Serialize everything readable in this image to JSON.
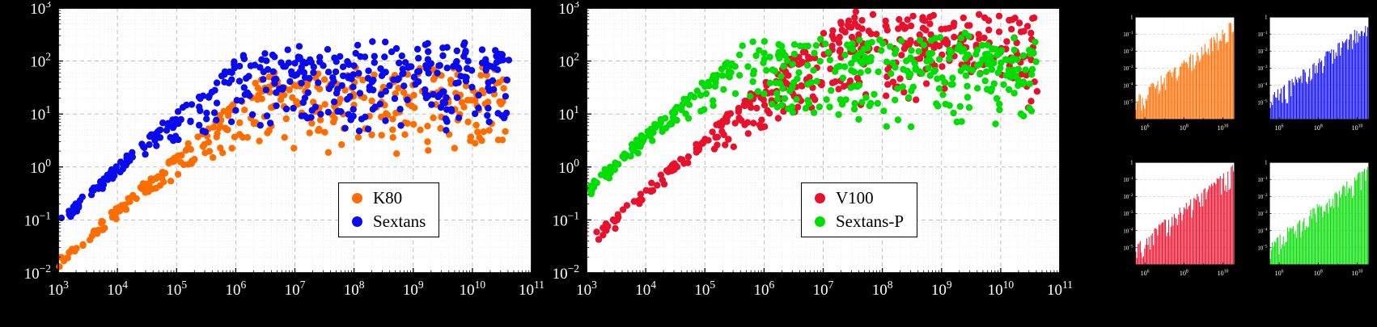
{
  "figure": {
    "bg": "#000000",
    "panel_bg": "#ffffff",
    "border_color": "#000000",
    "grid_major_color": "#b9b9b9",
    "grid_minor_color": "#dcdcdc",
    "mini_grid_minor_color": "#e6e6e6",
    "tick_label_color": "#ffffff",
    "legend_text_color": "#000000"
  },
  "chart_data": [
    {
      "id": "left-scatter-k80-vs-sextans",
      "type": "scatter",
      "xscale": "log",
      "yscale": "log",
      "x_exp_range": [
        3,
        11
      ],
      "y_exp_range": [
        -2,
        3
      ],
      "x_tick_exps": [
        3,
        4,
        5,
        6,
        7,
        8,
        9,
        10,
        11
      ],
      "y_tick_exps": [
        -2,
        -1,
        0,
        1,
        2,
        3
      ],
      "grid": true,
      "legend_position": "lower-right",
      "series": [
        {
          "name": "K80",
          "color": "#ff6d00",
          "marker": "circle",
          "trend": "rises with slope ~1 from (1e3, ~0.02), saturates around 20-80 for x >= 1e7, scattered down to ~2",
          "distribution": {
            "seed": 11,
            "n": 370,
            "xmin": 3.0,
            "xmax": 10.62,
            "x_bias": 0.85,
            "offset": 4.8,
            "sat": 1.6,
            "sat_noise": 0.3,
            "spread": 1.15,
            "tight_until": 4.4,
            "tight_ramp": 2.3
          }
        },
        {
          "name": "Sextans",
          "color": "#0a0af0",
          "marker": "circle",
          "trend": "rises with slope ~1 from (1e3, ~0.1), saturates around 60-280 for x >= 1e7, scattered down to ~5",
          "distribution": {
            "seed": 23,
            "n": 400,
            "xmin": 3.02,
            "xmax": 10.62,
            "x_bias": 0.78,
            "offset": 4.0,
            "sat": 2.05,
            "sat_noise": 0.3,
            "spread": 1.3,
            "tight_until": 4.2,
            "tight_ramp": 2.4
          }
        }
      ]
    },
    {
      "id": "middle-scatter-v100-vs-sextans-p",
      "type": "scatter",
      "xscale": "log",
      "yscale": "log",
      "x_exp_range": [
        3,
        11
      ],
      "y_exp_range": [
        -2,
        3
      ],
      "x_tick_exps": [
        3,
        4,
        5,
        6,
        7,
        8,
        9,
        10,
        11
      ],
      "y_tick_exps": [
        -2,
        -1,
        0,
        1,
        2,
        3
      ],
      "grid": true,
      "legend_position": "lower-right",
      "series": [
        {
          "name": "V100",
          "color": "#e8112d",
          "marker": "circle",
          "trend": "rises with slope ~1 from (~2e3, ~0.05), saturates around 300-900 for x >= 1e8, scattered down to ~10",
          "distribution": {
            "seed": 37,
            "n": 410,
            "xmin": 3.15,
            "xmax": 10.62,
            "x_bias": 0.8,
            "offset": 4.45,
            "sat": 2.62,
            "sat_noise": 0.28,
            "spread": 1.25,
            "tight_until": 4.5,
            "tight_ramp": 2.4
          }
        },
        {
          "name": "Sextans-P",
          "color": "#00dd00",
          "marker": "circle",
          "trend": "rises from (1e3, ~0.4), saturates around 100-300 for x >= 1e7, scattered down to ~8",
          "distribution": {
            "seed": 53,
            "n": 410,
            "xmin": 3.0,
            "xmax": 10.6,
            "x_bias": 0.8,
            "offset": 3.4,
            "sat": 2.2,
            "sat_noise": 0.28,
            "spread": 1.3,
            "tight_until": 4.1,
            "tight_ramp": 2.5
          }
        }
      ]
    },
    {
      "id": "mini-bars-k80",
      "type": "bar",
      "series_name": "K80",
      "color": "#ff6d00",
      "xscale": "log",
      "yscale": "log",
      "x_exp_range": [
        5.5,
        10.6
      ],
      "y_exp_range": [
        -6,
        0
      ],
      "x_tick_exps": [
        6,
        8,
        10
      ],
      "y_tick_exps": [
        0,
        -1,
        -2,
        -3,
        -4,
        -5
      ],
      "trend": "dense comb of bars whose height envelope rises from ~1e-5 at x=1e6 to ~1 at x=3e10",
      "distribution": {
        "seed": 71,
        "n": 90,
        "h_start": -4.6,
        "h_end": -0.18,
        "jitter": 1.25
      }
    },
    {
      "id": "mini-bars-sextans",
      "type": "bar",
      "series_name": "Sextans",
      "color": "#0a0af0",
      "xscale": "log",
      "yscale": "log",
      "x_exp_range": [
        5.5,
        10.6
      ],
      "y_exp_range": [
        -6,
        0
      ],
      "x_tick_exps": [
        6,
        8,
        10
      ],
      "y_tick_exps": [
        0,
        -1,
        -2,
        -3,
        -4,
        -5
      ],
      "trend": "dense comb of bars whose height envelope rises from ~1e-5 at x=1e6 to ~1 at x=3e10",
      "distribution": {
        "seed": 83,
        "n": 90,
        "h_start": -4.6,
        "h_end": -0.18,
        "jitter": 1.25
      }
    },
    {
      "id": "mini-bars-v100",
      "type": "bar",
      "series_name": "V100",
      "color": "#e8112d",
      "xscale": "log",
      "yscale": "log",
      "x_exp_range": [
        5.5,
        10.6
      ],
      "y_exp_range": [
        -6,
        0
      ],
      "x_tick_exps": [
        6,
        8,
        10
      ],
      "y_tick_exps": [
        0,
        -1,
        -2,
        -3,
        -4,
        -5
      ],
      "trend": "dense comb of bars whose height envelope rises from ~1e-5 at x=1e6 to ~1 at x=3e10",
      "distribution": {
        "seed": 97,
        "n": 90,
        "h_start": -4.7,
        "h_end": -0.15,
        "jitter": 1.3
      }
    },
    {
      "id": "mini-bars-sextans-p",
      "type": "bar",
      "series_name": "Sextans-P",
      "color": "#00dd00",
      "xscale": "log",
      "yscale": "log",
      "x_exp_range": [
        5.5,
        10.6
      ],
      "y_exp_range": [
        -6,
        0
      ],
      "x_tick_exps": [
        6,
        8,
        10
      ],
      "y_tick_exps": [
        0,
        -1,
        -2,
        -3,
        -4,
        -5
      ],
      "trend": "dense comb of bars whose height envelope rises from ~1e-5 at x=1e6 to ~1 at x=3e10",
      "distribution": {
        "seed": 109,
        "n": 90,
        "h_start": -4.6,
        "h_end": -0.2,
        "jitter": 1.25
      }
    }
  ]
}
